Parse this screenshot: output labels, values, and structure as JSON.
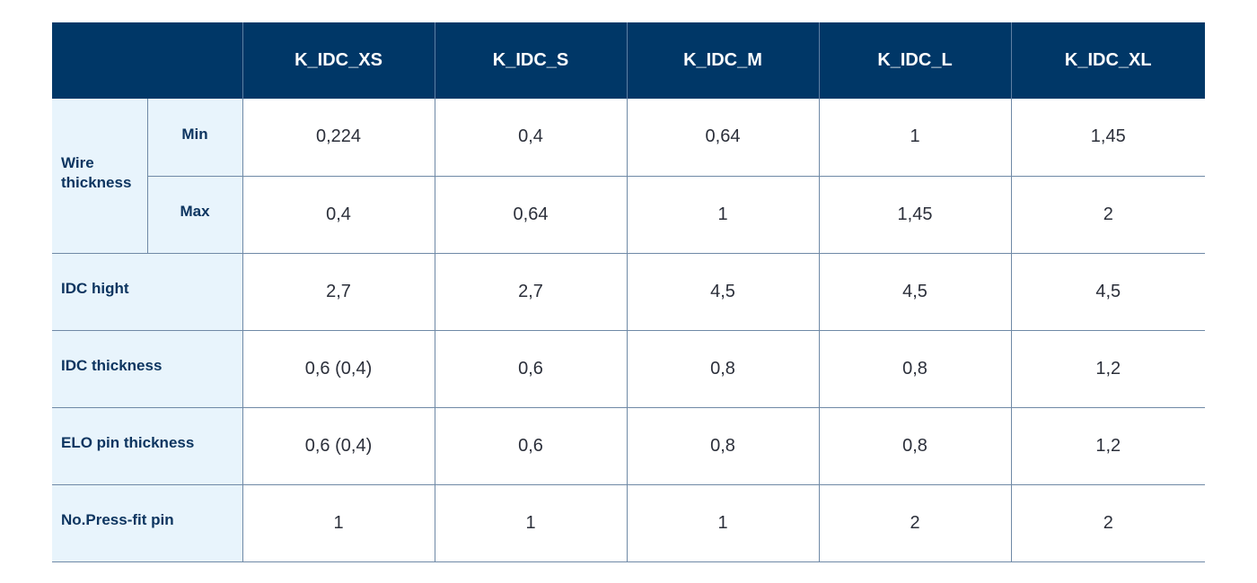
{
  "table": {
    "columns": [
      "K_IDC_XS",
      "K_IDC_S",
      "K_IDC_M",
      "K_IDC_L",
      "K_IDC_XL"
    ],
    "wire_thickness": {
      "label": "Wire thickness",
      "min": {
        "label": "Min",
        "values": [
          "0,224",
          "0,4",
          "0,64",
          "1",
          "1,45"
        ]
      },
      "max": {
        "label": "Max",
        "values": [
          "0,4",
          "0,64",
          "1",
          "1,45",
          "2"
        ]
      }
    },
    "rows": [
      {
        "label": "IDC hight",
        "values": [
          "2,7",
          "2,7",
          "4,5",
          "4,5",
          "4,5"
        ]
      },
      {
        "label": "IDC thickness",
        "values": [
          "0,6 (0,4)",
          "0,6",
          "0,8",
          "0,8",
          "1,2"
        ]
      },
      {
        "label": "ELO pin thickness",
        "values": [
          "0,6 (0,4)",
          "0,6",
          "0,8",
          "0,8",
          "1,2"
        ]
      },
      {
        "label": "No.Press-fit pin",
        "values": [
          "1",
          "1",
          "1",
          "2",
          "2"
        ]
      }
    ],
    "colors": {
      "header_bg": "#003767",
      "label_bg": "#e8f4fc",
      "label_text": "#0d3560",
      "grid_line": "#6f89a6"
    }
  }
}
